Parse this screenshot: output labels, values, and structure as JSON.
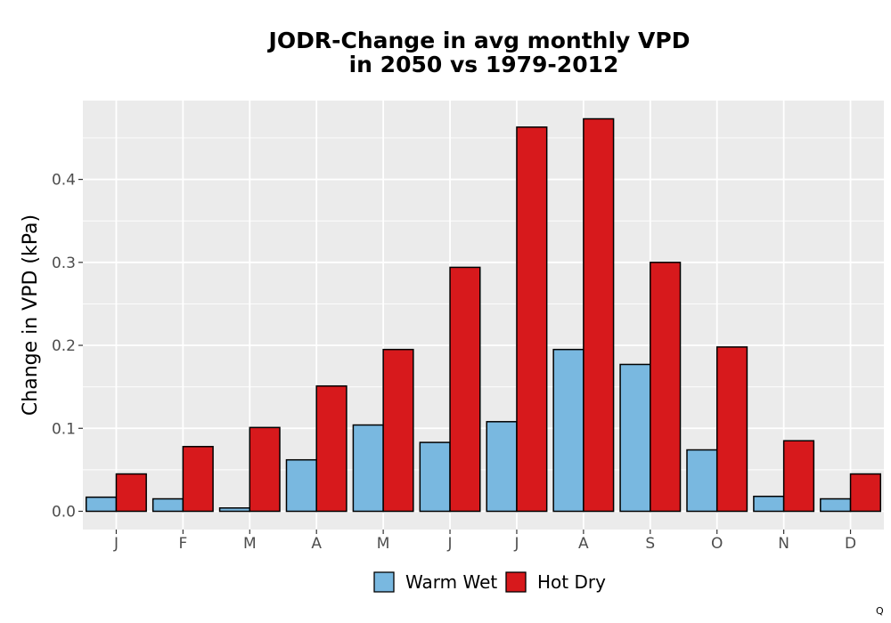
{
  "chart_data": {
    "type": "bar",
    "title_lines": [
      "JODR-Change in avg monthly VPD",
      "in 2050 vs 1979-2012"
    ],
    "xlabel": "",
    "ylabel": "Change in VPD (kPa)",
    "categories": [
      "J",
      "F",
      "M",
      "A",
      "M",
      "J",
      "J",
      "A",
      "S",
      "O",
      "N",
      "D"
    ],
    "series": [
      {
        "name": "Warm Wet",
        "color": "#79b8e0",
        "values": [
          0.017,
          0.015,
          0.004,
          0.062,
          0.104,
          0.083,
          0.108,
          0.195,
          0.177,
          0.074,
          0.018,
          0.015
        ]
      },
      {
        "name": "Hot Dry",
        "color": "#d7191c",
        "values": [
          0.045,
          0.078,
          0.101,
          0.151,
          0.195,
          0.294,
          0.463,
          0.473,
          0.3,
          0.198,
          0.085,
          0.045
        ]
      }
    ],
    "yticks": [
      0.0,
      0.1,
      0.2,
      0.3,
      0.4
    ],
    "ytick_labels": [
      "0.0",
      "0.1",
      "0.2",
      "0.3",
      "0.4"
    ],
    "ylim": [
      -0.022,
      0.495
    ],
    "grid": true,
    "legend_position": "bottom",
    "panel_background": "#ebebeb",
    "corner_note": "Q"
  }
}
